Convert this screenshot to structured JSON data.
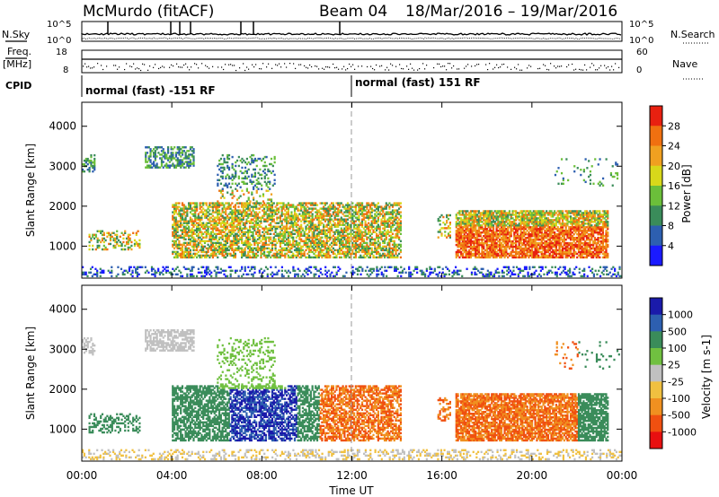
{
  "header": {
    "station": "McMurdo (fitACF)",
    "beam": "Beam 04",
    "date_range": "18/Mar/2016 – 19/Mar/2016"
  },
  "aux": {
    "nsky_label": "N.Sky",
    "nsearch_label": "N.Search",
    "log_top": "10^5",
    "log_bottom": "10^0",
    "log_top_r": "10^5",
    "log_bottom_r": "10^0",
    "freq_label": "Freq.",
    "freq_unit": "[MHz]",
    "freq_top": "18",
    "freq_bottom": "8",
    "nave_label": "Nave",
    "nave_top": "60",
    "nave_bottom": "0",
    "cpid_label": "CPID",
    "cpid_segments": [
      {
        "text": "normal (fast) -151 RF"
      },
      {
        "text": "normal (fast) 151 RF"
      }
    ]
  },
  "colors": {
    "power_scale": [
      "#1a1aff",
      "#2d5fb0",
      "#3a8c5a",
      "#6bbf3a",
      "#d8d81a",
      "#f0a020",
      "#f07010",
      "#e82010"
    ],
    "velocity_scale": [
      "#1a1aaa",
      "#2d5fb0",
      "#3a8c5a",
      "#70c040",
      "#c0c0c0",
      "#f0c040",
      "#f09020",
      "#f05010",
      "#e81010"
    ]
  },
  "chart_data": [
    {
      "type": "heatmap",
      "title": "",
      "xlabel": "Time UT",
      "ylabel": "Slant Range [km]",
      "x_ticks": [
        "00:00",
        "04:00",
        "08:00",
        "12:00",
        "16:00",
        "20:00",
        "00:00"
      ],
      "y_ticks": [
        "1000",
        "2000",
        "3000",
        "4000"
      ],
      "colorbar_label": "Power [dB]",
      "colorbar_ticks": [
        "4",
        "8",
        "12",
        "16",
        "20",
        "24",
        "28"
      ]
    },
    {
      "type": "heatmap",
      "title": "",
      "xlabel": "Time UT",
      "ylabel": "Slant Range [km]",
      "x_ticks": [
        "00:00",
        "04:00",
        "08:00",
        "12:00",
        "16:00",
        "20:00",
        "00:00"
      ],
      "y_ticks": [
        "1000",
        "2000",
        "3000",
        "4000"
      ],
      "colorbar_label": "Velocity [m s-1]",
      "colorbar_ticks": [
        "1000",
        "500",
        "100",
        "25",
        "-25",
        "-100",
        "-500",
        "-1000"
      ]
    }
  ]
}
